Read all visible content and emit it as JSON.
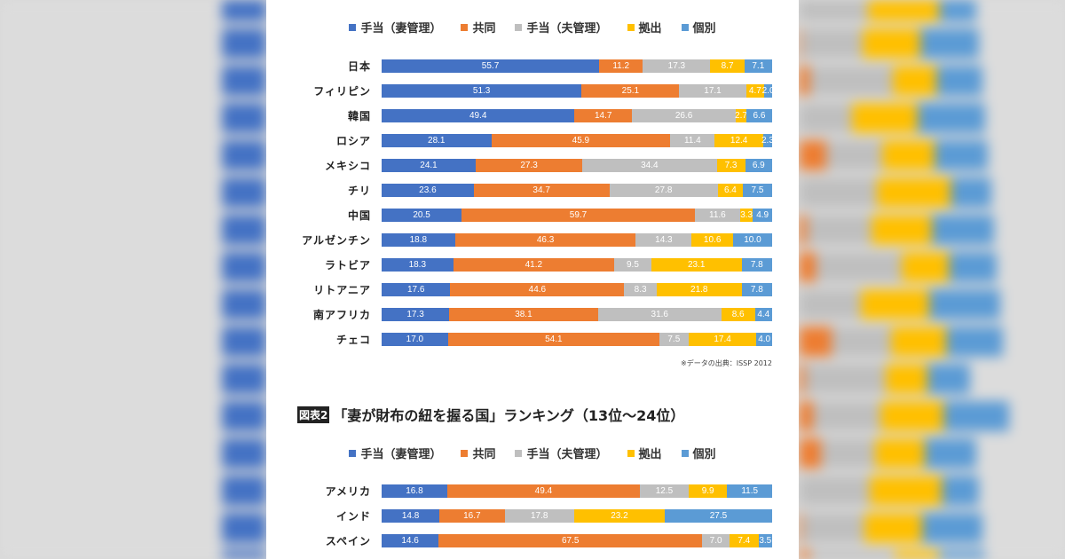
{
  "colors": {
    "wife_allowance": "#4472c4",
    "joint": "#ed7d31",
    "husband_allowance": "#bfbfbf",
    "pooled": "#ffc000",
    "separate": "#5b9bd5"
  },
  "chart_data": [
    {
      "type": "bar",
      "orientation": "horizontal",
      "stacked": true,
      "title": "",
      "legend": [
        "手当（妻管理）",
        "共同",
        "手当（夫管理）",
        "拠出",
        "個別"
      ],
      "legend_position": "top",
      "categories": [
        "日本",
        "フィリピン",
        "韓国",
        "ロシア",
        "メキシコ",
        "チリ",
        "中国",
        "アルゼンチン",
        "ラトビア",
        "リトアニア",
        "南アフリカ",
        "チェコ"
      ],
      "series": [
        {
          "name": "手当（妻管理）",
          "values": [
            55.7,
            51.3,
            49.4,
            28.1,
            24.1,
            23.6,
            20.5,
            18.8,
            18.3,
            17.6,
            17.3,
            17.0
          ]
        },
        {
          "name": "共同",
          "values": [
            11.2,
            25.1,
            14.7,
            45.9,
            27.3,
            34.7,
            59.7,
            46.3,
            41.2,
            44.6,
            38.1,
            54.1
          ]
        },
        {
          "name": "手当（夫管理）",
          "values": [
            17.3,
            17.1,
            26.6,
            11.4,
            34.4,
            27.8,
            11.6,
            14.3,
            9.5,
            8.3,
            31.6,
            7.5
          ]
        },
        {
          "name": "拠出",
          "values": [
            8.7,
            4.7,
            2.7,
            12.4,
            7.3,
            6.4,
            3.3,
            10.6,
            23.1,
            21.8,
            8.6,
            17.4
          ]
        },
        {
          "name": "個別",
          "values": [
            7.1,
            2.0,
            6.6,
            2.3,
            6.9,
            7.5,
            4.9,
            10.0,
            7.8,
            7.8,
            4.4,
            4.0
          ]
        }
      ],
      "source": "※データの出典：ISSP 2012"
    },
    {
      "type": "bar",
      "orientation": "horizontal",
      "stacked": true,
      "title_tag": "図表2",
      "title": "「妻が財布の紐を握る国」ランキング（13位～24位）",
      "legend": [
        "手当（妻管理）",
        "共同",
        "手当（夫管理）",
        "拠出",
        "個別"
      ],
      "legend_position": "top",
      "categories": [
        "アメリカ",
        "インド",
        "スペイン"
      ],
      "series": [
        {
          "name": "手当（妻管理）",
          "values": [
            16.8,
            14.8,
            14.6
          ]
        },
        {
          "name": "共同",
          "values": [
            49.4,
            16.7,
            67.5
          ]
        },
        {
          "name": "手当（夫管理）",
          "values": [
            12.5,
            17.8,
            7.0
          ]
        },
        {
          "name": "拠出",
          "values": [
            9.9,
            23.2,
            7.4
          ]
        },
        {
          "name": "個別",
          "values": [
            11.5,
            27.5,
            3.5
          ]
        }
      ]
    }
  ]
}
